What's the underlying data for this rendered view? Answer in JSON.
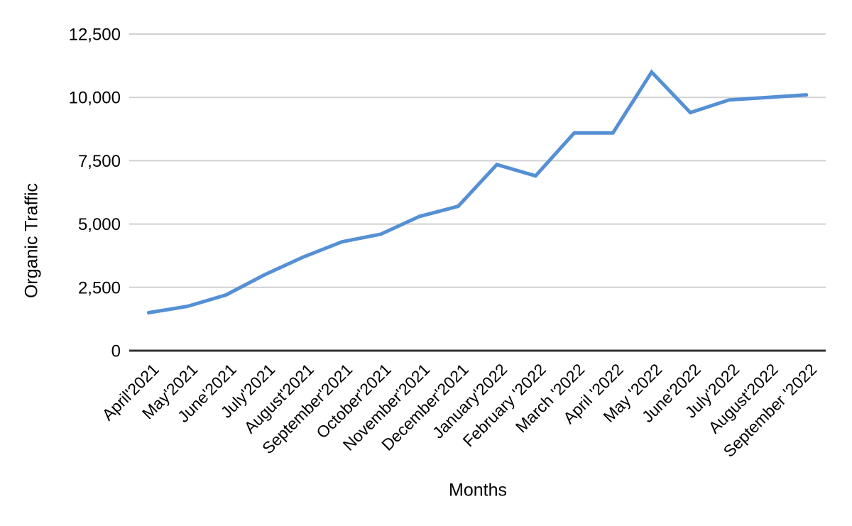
{
  "chart_data": {
    "type": "line",
    "title": "",
    "xlabel": "Months",
    "ylabel": "Organic Traffic",
    "categories": [
      "April'2021",
      "May'2021",
      "June'2021",
      "July'2021",
      "August'2021",
      "September'2021",
      "October'2021",
      "November'2021",
      "December'2021",
      "January'2022",
      "February '2022",
      "March '2022",
      "April '2022",
      "May '2022",
      "June'2022",
      "July'2022",
      "August'2022",
      "September '2022"
    ],
    "values": [
      1500,
      1750,
      2200,
      3000,
      3700,
      4300,
      4600,
      5300,
      5700,
      7350,
      6900,
      8600,
      8600,
      11000,
      9400,
      9900,
      10000,
      10100
    ],
    "ylim": [
      0,
      12500
    ],
    "yticks": [
      0,
      2500,
      5000,
      7500,
      10000,
      12500
    ],
    "ytick_labels": [
      "0",
      "2,500",
      "5,000",
      "7,500",
      "10,000",
      "12,500"
    ],
    "x_tick_rotation": 45,
    "grid": "horizontal",
    "legend_position": "none",
    "colors": {
      "series_line": "#5590d5",
      "gridline": "#d1d1d1",
      "axis_baseline": "#333333",
      "tick_text": "#000000",
      "background": "#ffffff"
    }
  }
}
